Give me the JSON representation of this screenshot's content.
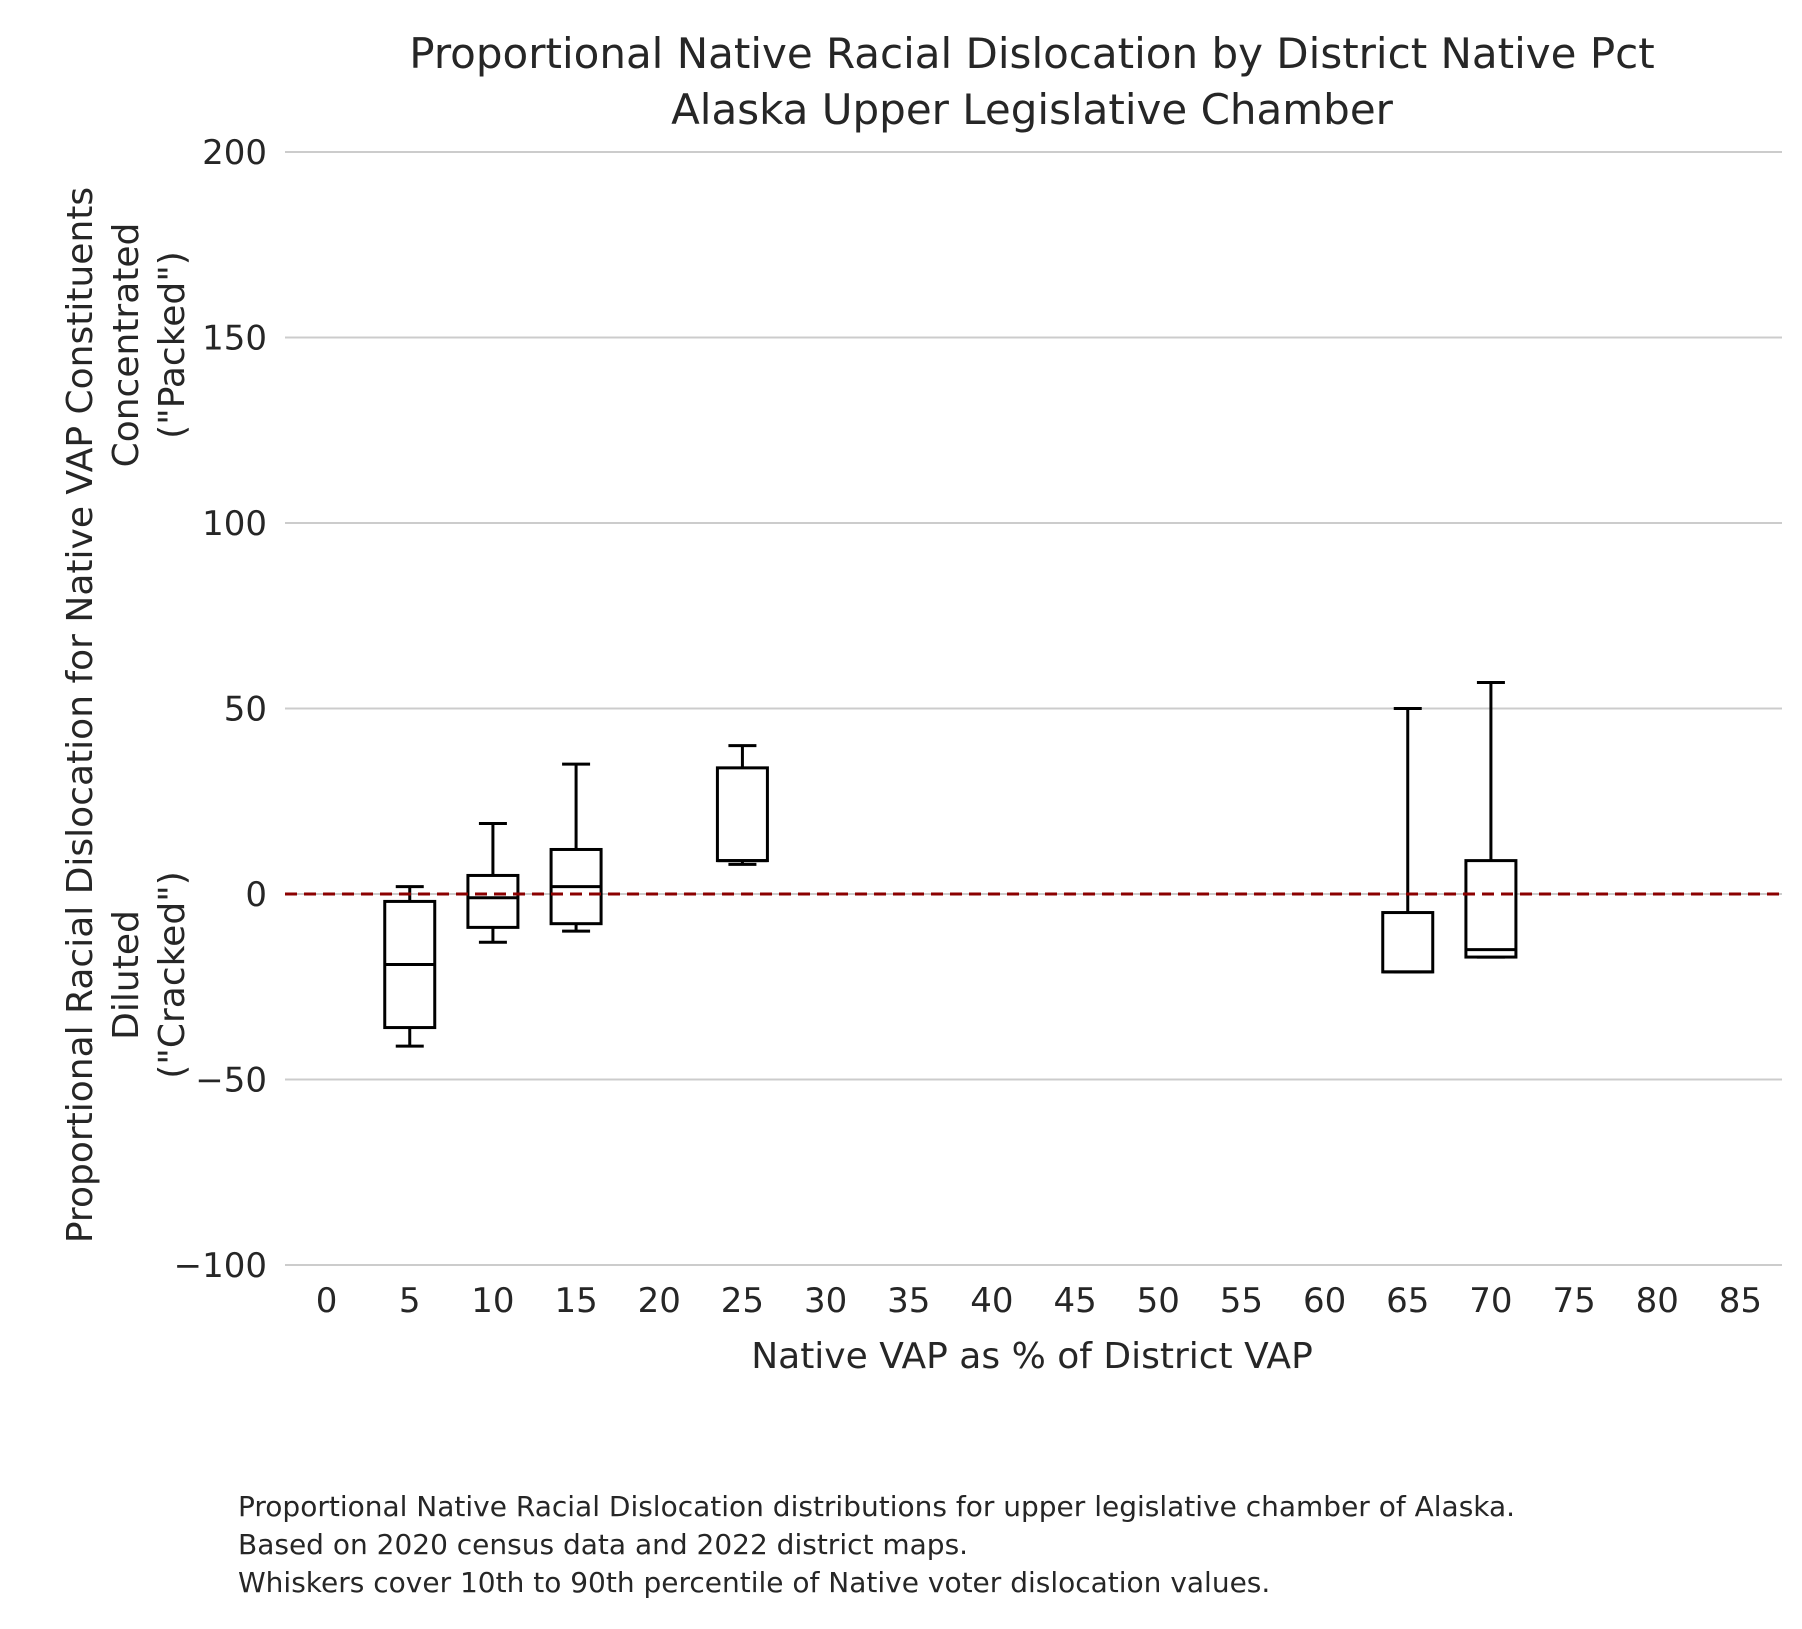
{
  "chart_data": {
    "type": "box",
    "title_lines": [
      "Proportional Native Racial Dislocation by District Native Pct",
      "Alaska Upper Legislative Chamber"
    ],
    "xlabel": "Native VAP as % of District VAP",
    "ylabel_lines": [
      "Proportional Racial Dislocation for Native VAP Constituents",
      "Concentrated",
      "(\"Packed\")",
      "Diluted",
      "(\"Cracked\")"
    ],
    "xlim": [
      -2.5,
      87.5
    ],
    "ylim": [
      -100,
      200
    ],
    "x_ticks": [
      0,
      5,
      10,
      15,
      20,
      25,
      30,
      35,
      40,
      45,
      50,
      55,
      60,
      65,
      70,
      75,
      80,
      85
    ],
    "y_ticks": [
      -100,
      -50,
      0,
      50,
      100,
      150,
      200
    ],
    "y_tick_labels": [
      "−100",
      "−50",
      "0",
      "50",
      "100",
      "150",
      "200"
    ],
    "reference_line": {
      "y": 0,
      "style": "dashed",
      "color": "#8b0000"
    },
    "grid": "horizontal",
    "boxes": [
      {
        "x": 5,
        "whisker_low": -41,
        "q1": -36,
        "median": -19,
        "q3": -2,
        "whisker_high": 2
      },
      {
        "x": 10,
        "whisker_low": -13,
        "q1": -9,
        "median": -1,
        "q3": 5,
        "whisker_high": 19
      },
      {
        "x": 15,
        "whisker_low": -10,
        "q1": -8,
        "median": 2,
        "q3": 12,
        "whisker_high": 35
      },
      {
        "x": 25,
        "whisker_low": 8,
        "q1": 9,
        "median": 9,
        "q3": 34,
        "whisker_high": 40
      },
      {
        "x": 65,
        "whisker_low": -21,
        "q1": -21,
        "median": -21,
        "q3": -5,
        "whisker_high": 50
      },
      {
        "x": 70,
        "whisker_low": -17,
        "q1": -17,
        "median": -15,
        "q3": 9,
        "whisker_high": 57
      }
    ],
    "colors": {
      "box": "#000000",
      "grid": "#cccccc",
      "zero_line": "#8b0000",
      "text": "#262626"
    }
  },
  "caption_lines": [
    "Proportional Native Racial Dislocation distributions for upper legislative chamber of Alaska.",
    "Based on 2020 census data and 2022 district maps.",
    "Whiskers cover 10th to 90th percentile of Native voter dislocation values."
  ]
}
